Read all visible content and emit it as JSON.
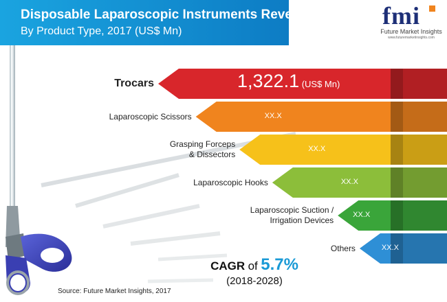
{
  "header": {
    "title": "Disposable Laparoscopic Instruments Revenue",
    "subtitle": "By Product Type, 2017 (US$ Mn)"
  },
  "logo": {
    "text": "fmi",
    "tagline": "Future Market Insights",
    "url": "www.futuremarketinsights.com"
  },
  "colors": {
    "title_band": "#1aa4e0",
    "trocars": "#d8262b",
    "scissors": "#f0841e",
    "forceps": "#f6c11a",
    "hooks": "#8cbe3a",
    "suction": "#3aa53a",
    "others": "#2e8fd6"
  },
  "chart_data": {
    "type": "bar",
    "orientation": "horizontal",
    "categories": [
      "Trocars",
      "Laparoscopic Scissors",
      "Grasping Forceps & Dissectors",
      "Laparoscopic Hooks",
      "Laparoscopic Suction / Irrigation Devices",
      "Others"
    ],
    "category_lines": [
      [
        "Trocars"
      ],
      [
        "Laparoscopic Scissors"
      ],
      [
        "Grasping Forceps",
        "& Dissectors"
      ],
      [
        "Laparoscopic Hooks"
      ],
      [
        "Laparoscopic Suction /",
        "Irrigation Devices"
      ],
      [
        "Others"
      ]
    ],
    "value_labels": [
      "1,322.1",
      "XX.X",
      "XX.X",
      "XX.X",
      "XX.X",
      "XX.X"
    ],
    "unit_label": "(US$ Mn)",
    "values": [
      1322.1,
      1150,
      950,
      800,
      500,
      400
    ],
    "title": "Disposable Laparoscopic Instruments Revenue",
    "subtitle": "By Product Type, 2017 (US$ Mn)",
    "cagr_prefix": "CAGR",
    "cagr_of": "of",
    "cagr_value": "5.7%",
    "cagr_period": "(2018-2028)",
    "source": "Source: Future Market Insights, 2017"
  }
}
